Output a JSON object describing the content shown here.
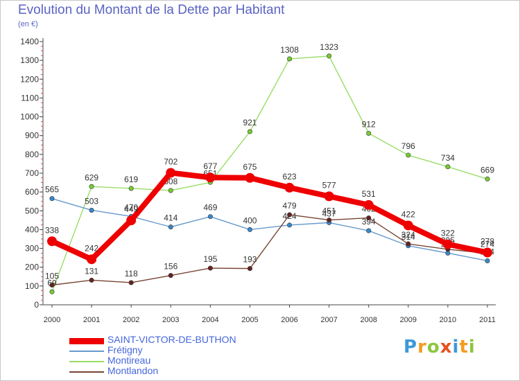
{
  "title": "Evolution du Montant de la Dette par Habitant",
  "subtitle": "(en €)",
  "brand": {
    "letters": [
      "P",
      "r",
      "o",
      "x",
      "i",
      "t",
      "i"
    ],
    "colors": [
      "#3b9ad9",
      "#f39c1f",
      "#8cc63f",
      "#e8501f",
      "#3b9ad9",
      "#f39c1f",
      "#8cc63f"
    ]
  },
  "chart_data": {
    "type": "line",
    "x": [
      "2000",
      "2001",
      "2002",
      "2003",
      "2004",
      "2005",
      "2006",
      "2007",
      "2008",
      "2009",
      "2010",
      "2011"
    ],
    "ylim": [
      0,
      1400
    ],
    "yticks": [
      0,
      100,
      200,
      300,
      400,
      500,
      600,
      700,
      800,
      900,
      1000,
      1100,
      1200,
      1300,
      1400
    ],
    "grid": false,
    "legend_position": "bottom-left",
    "series": [
      {
        "name": "Montireau",
        "color": "#99dd66",
        "point_color": "#77cc33",
        "values": [
          69,
          629,
          619,
          608,
          651,
          921,
          1308,
          1323,
          912,
          796,
          734,
          669
        ]
      },
      {
        "name": "Frétigny",
        "color": "#6699cc",
        "point_color": "#3a88cc",
        "values": [
          565,
          503,
          470,
          414,
          469,
          400,
          424,
          437,
          394,
          314,
          275,
          234
        ]
      },
      {
        "name": "Montlandon",
        "color": "#774433",
        "point_color": "#662222",
        "values": [
          105,
          131,
          118,
          156,
          195,
          193,
          479,
          451,
          462,
          324,
          295,
          274
        ]
      },
      {
        "name": "SAINT-VICTOR-DE-BUTHON",
        "color": "#ee0000",
        "point_color": "#ee0000",
        "values": [
          338,
          242,
          449,
          702,
          677,
          675,
          623,
          577,
          531,
          422,
          322,
          278
        ]
      }
    ],
    "legend_order": [
      "SAINT-VICTOR-DE-BUTHON",
      "Frétigny",
      "Montireau",
      "Montlandon"
    ]
  }
}
